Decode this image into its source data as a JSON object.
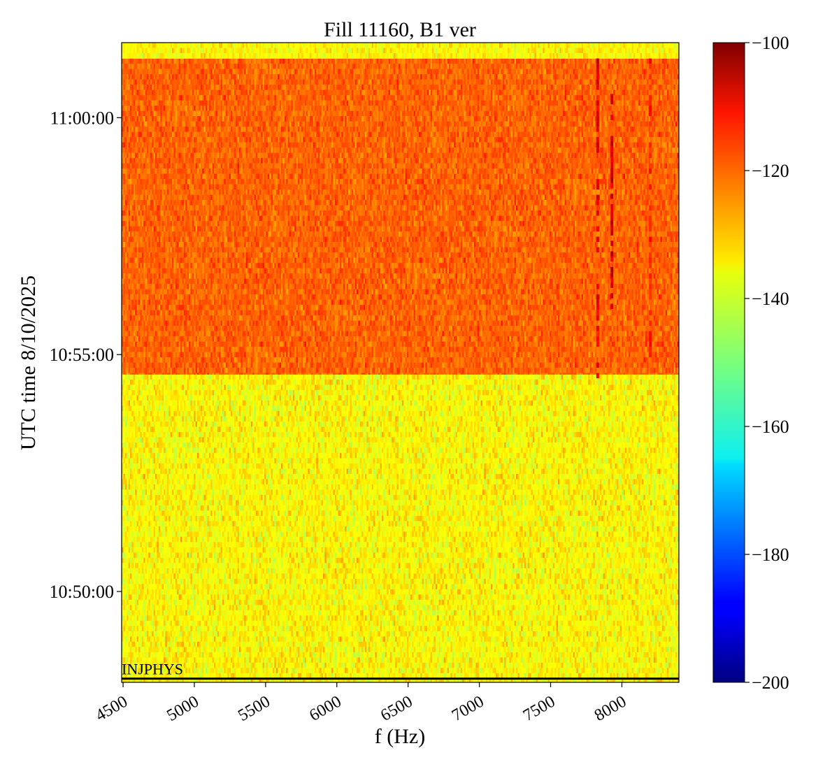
{
  "chart_data": {
    "type": "heatmap",
    "title": "Fill 11160, B1 ver",
    "xlabel": "f (Hz)",
    "ylabel": "UTC time 8/10/2025",
    "xlim": [
      4490,
      8400
    ],
    "x_ticks": [
      4500,
      5000,
      5500,
      6000,
      6500,
      7000,
      7500,
      8000
    ],
    "x_tick_labels": [
      "4500",
      "5000",
      "5500",
      "6000",
      "6500",
      "7000",
      "7500",
      "8000"
    ],
    "ylim": [
      "10:48:05",
      "11:01:35"
    ],
    "y_ticks": [
      "10:50:00",
      "10:55:00",
      "11:00:00"
    ],
    "y_tick_labels": [
      "10:50:00",
      "10:55:00",
      "11:00:00"
    ],
    "colorbar": {
      "colormap": "jet",
      "range": [
        -200,
        -100
      ],
      "ticks": [
        -200,
        -180,
        -160,
        -140,
        -120,
        -100
      ],
      "tick_labels": [
        "−200",
        "−180",
        "−160",
        "−140",
        "−120",
        "−100"
      ]
    },
    "regions": [
      {
        "time_start": "10:48:05",
        "time_end": "10:54:35",
        "typical_value": -137,
        "spread": 5
      },
      {
        "time_start": "10:54:35",
        "time_end": "11:01:15",
        "typical_value": -122,
        "spread": 4
      },
      {
        "time_start": "11:01:15",
        "time_end": "11:01:35",
        "typical_value": -137,
        "spread": 4
      }
    ],
    "features": [
      {
        "f_hz": 7830,
        "time_start": "10:54:35",
        "time_end": "11:01:15",
        "value": -110
      },
      {
        "f_hz": 7930,
        "time_start": "10:56:00",
        "time_end": "11:00:30",
        "value": -108
      },
      {
        "f_hz": 8200,
        "time_start": "10:55:00",
        "time_end": "11:01:15",
        "value": -115
      }
    ],
    "annotations": [
      {
        "text": "INJPHYS",
        "time": "10:48:15",
        "f_hz": 4490
      }
    ]
  }
}
